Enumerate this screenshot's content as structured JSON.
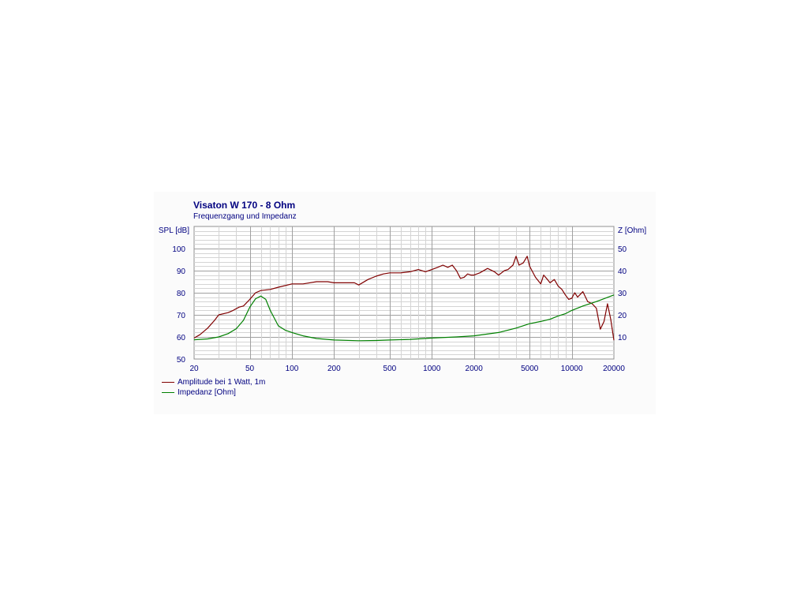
{
  "chart_data": {
    "type": "line",
    "title": "Visaton W 170 - 8 Ohm",
    "subtitle": "Frequenzgang und Impedanz",
    "ylabel": "SPL [dB]",
    "y2label": "Z [Ohm]",
    "xscale": "log",
    "xlim": [
      20,
      20000
    ],
    "ylim": [
      50,
      110
    ],
    "y2lim": [
      0,
      60
    ],
    "x_ticks": [
      20,
      50,
      100,
      200,
      500,
      1000,
      2000,
      5000,
      10000,
      20000
    ],
    "y_ticks": [
      50,
      60,
      70,
      80,
      90,
      100
    ],
    "y2_ticks": [
      10,
      20,
      30,
      40,
      50
    ],
    "grid": true,
    "legend_position": "bottom-left",
    "colors": {
      "spl": "#800000",
      "impedance": "#008000",
      "text": "#000080"
    },
    "series": [
      {
        "name": "Amplitude bei 1 Watt, 1m",
        "axis": "left",
        "x": [
          20,
          22,
          25,
          28,
          30,
          35,
          38,
          42,
          45,
          50,
          55,
          60,
          70,
          80,
          100,
          120,
          150,
          180,
          200,
          250,
          280,
          300,
          350,
          400,
          450,
          500,
          600,
          700,
          800,
          900,
          1000,
          1100,
          1200,
          1300,
          1400,
          1500,
          1600,
          1700,
          1800,
          1900,
          2000,
          2200,
          2500,
          2800,
          3000,
          3300,
          3500,
          3800,
          4000,
          4200,
          4500,
          4800,
          5000,
          5500,
          6000,
          6300,
          6700,
          7000,
          7500,
          8000,
          8500,
          9000,
          9500,
          10000,
          10500,
          11000,
          12000,
          13000,
          14000,
          15000,
          16000,
          17000,
          18000,
          19000,
          20000
        ],
        "values": [
          59.5,
          61,
          64,
          67.5,
          70,
          71,
          72,
          73.5,
          74,
          77,
          80,
          81,
          81.5,
          82.5,
          84,
          84,
          85,
          85,
          84.5,
          84.5,
          84.5,
          83.5,
          86,
          87.5,
          88.5,
          89,
          89,
          89.5,
          90.5,
          89.5,
          90.5,
          91.5,
          92.5,
          91.5,
          92.5,
          90,
          86.5,
          87,
          88.5,
          88,
          88,
          89,
          91,
          89.5,
          88,
          90,
          90.5,
          92.5,
          96.5,
          92.5,
          93.5,
          96.5,
          92,
          87,
          84,
          88,
          86,
          84.5,
          86,
          83,
          81.5,
          79,
          77,
          77.5,
          80,
          78,
          80.5,
          76,
          75,
          73,
          63.5,
          67,
          75,
          68,
          58.5
        ]
      },
      {
        "name": "Impedanz [Ohm]",
        "axis": "right",
        "x": [
          20,
          25,
          30,
          35,
          40,
          45,
          50,
          55,
          60,
          65,
          70,
          80,
          90,
          100,
          120,
          150,
          200,
          300,
          400,
          500,
          700,
          1000,
          1500,
          2000,
          3000,
          4000,
          5000,
          6000,
          7000,
          8000,
          9000,
          10000,
          12000,
          15000,
          20000
        ],
        "values": [
          8.7,
          9.1,
          10,
          11.5,
          13.7,
          17.5,
          23.5,
          27.3,
          28.5,
          27,
          22,
          15,
          13,
          12,
          10.5,
          9.3,
          8.6,
          8.3,
          8.4,
          8.6,
          8.9,
          9.5,
          10,
          10.5,
          12,
          14,
          16,
          17,
          18,
          19.5,
          20.5,
          22,
          24,
          26,
          29
        ]
      }
    ]
  }
}
